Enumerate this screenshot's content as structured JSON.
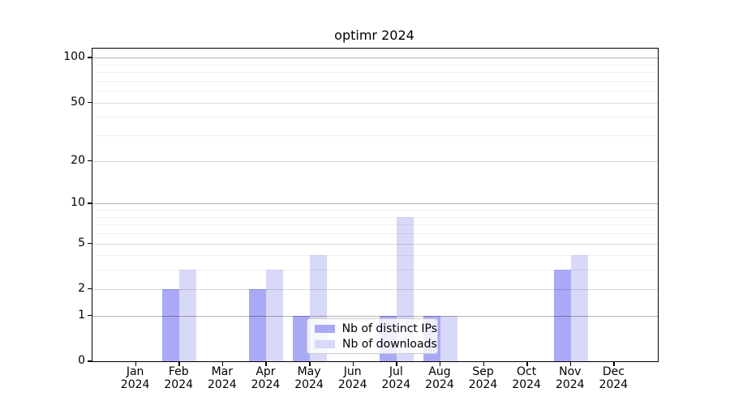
{
  "chart_data": {
    "type": "bar",
    "title": "optimr 2024",
    "categories": [
      {
        "month": "Jan",
        "year": "2024"
      },
      {
        "month": "Feb",
        "year": "2024"
      },
      {
        "month": "Mar",
        "year": "2024"
      },
      {
        "month": "Apr",
        "year": "2024"
      },
      {
        "month": "May",
        "year": "2024"
      },
      {
        "month": "Jun",
        "year": "2024"
      },
      {
        "month": "Jul",
        "year": "2024"
      },
      {
        "month": "Aug",
        "year": "2024"
      },
      {
        "month": "Sep",
        "year": "2024"
      },
      {
        "month": "Oct",
        "year": "2024"
      },
      {
        "month": "Nov",
        "year": "2024"
      },
      {
        "month": "Dec",
        "year": "2024"
      }
    ],
    "series": [
      {
        "name": "Nb of distinct IPs",
        "color": "#a9a9f6",
        "values": [
          0,
          2,
          0,
          2,
          1,
          0,
          1,
          1,
          0,
          0,
          3,
          0
        ]
      },
      {
        "name": "Nb of downloads",
        "color": "#d8d8f8",
        "values": [
          0,
          3,
          0,
          3,
          4,
          0,
          8,
          1,
          0,
          0,
          4,
          0
        ]
      }
    ],
    "yscale": "log1p",
    "ylim": [
      0,
      115
    ],
    "yticks": [
      0,
      1,
      2,
      5,
      10,
      20,
      50,
      100
    ],
    "grid": true,
    "legend_position": "lower-center-inside"
  }
}
